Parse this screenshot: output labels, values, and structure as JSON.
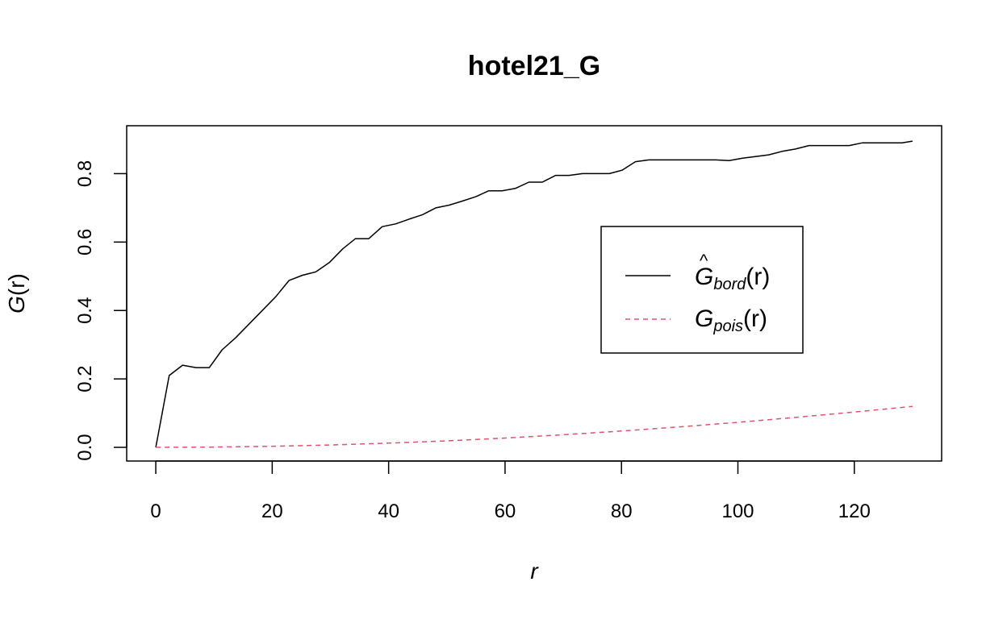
{
  "chart_data": {
    "type": "line",
    "title": "hotel21_G",
    "xlabel": "r",
    "ylabel_main": "G",
    "ylabel_arg": "(r)",
    "xlim": [
      -5,
      135
    ],
    "ylim": [
      -0.04,
      0.94
    ],
    "x_ticks": [
      0,
      20,
      40,
      60,
      80,
      100,
      120
    ],
    "x_tick_labels": [
      "0",
      "20",
      "40",
      "60",
      "80",
      "100",
      "120"
    ],
    "y_ticks": [
      0.0,
      0.2,
      0.4,
      0.6,
      0.8
    ],
    "y_tick_labels": [
      "0.0",
      "0.2",
      "0.4",
      "0.6",
      "0.8"
    ],
    "legend_position": "center-right",
    "series": [
      {
        "name": "Ĝbord(r)",
        "legend": {
          "main": "G",
          "sub": "bord",
          "arg": "(r)",
          "hat": "^"
        },
        "color": "#000000",
        "dash": "solid",
        "x": [
          0,
          2.3,
          4.6,
          6.9,
          9.2,
          11.4,
          13.7,
          16,
          18.3,
          20.6,
          22.9,
          25.2,
          27.5,
          29.8,
          32.1,
          34.3,
          36.6,
          38.9,
          41.2,
          43.5,
          45.8,
          48.1,
          50.4,
          52.7,
          55,
          57.2,
          59.5,
          61.8,
          64.1,
          66.4,
          68.7,
          71,
          73.3,
          75.6,
          77.9,
          80.1,
          82.4,
          84.7,
          87,
          89.3,
          91.6,
          93.9,
          96.2,
          98.5,
          100.8,
          103,
          105.3,
          107.6,
          109.9,
          112.2,
          114.5,
          116.8,
          119.1,
          121.4,
          123.7,
          126,
          128.2,
          130
        ],
        "y": [
          0,
          0.21,
          0.24,
          0.233,
          0.233,
          0.285,
          0.32,
          0.36,
          0.4,
          0.44,
          0.488,
          0.503,
          0.513,
          0.54,
          0.58,
          0.61,
          0.61,
          0.645,
          0.653,
          0.667,
          0.68,
          0.7,
          0.708,
          0.72,
          0.733,
          0.75,
          0.75,
          0.757,
          0.775,
          0.775,
          0.795,
          0.795,
          0.8,
          0.8,
          0.8,
          0.81,
          0.835,
          0.84,
          0.84,
          0.84,
          0.84,
          0.84,
          0.84,
          0.838,
          0.845,
          0.85,
          0.855,
          0.865,
          0.872,
          0.882,
          0.882,
          0.882,
          0.882,
          0.89,
          0.89,
          0.89,
          0.89,
          0.895
        ]
      },
      {
        "name": "Gpois(r)",
        "legend": {
          "main": "G",
          "sub": "pois",
          "arg": "(r)",
          "hat": ""
        },
        "color": "#DF536B",
        "dash": "dashed",
        "x": [
          0,
          10,
          20,
          30,
          40,
          50,
          60,
          70,
          80,
          90,
          100,
          110,
          120,
          130
        ],
        "y": [
          0,
          0.0008,
          0.0031,
          0.0069,
          0.0122,
          0.019,
          0.0272,
          0.0367,
          0.0476,
          0.0598,
          0.0731,
          0.0876,
          0.1032,
          0.1198
        ]
      }
    ]
  }
}
